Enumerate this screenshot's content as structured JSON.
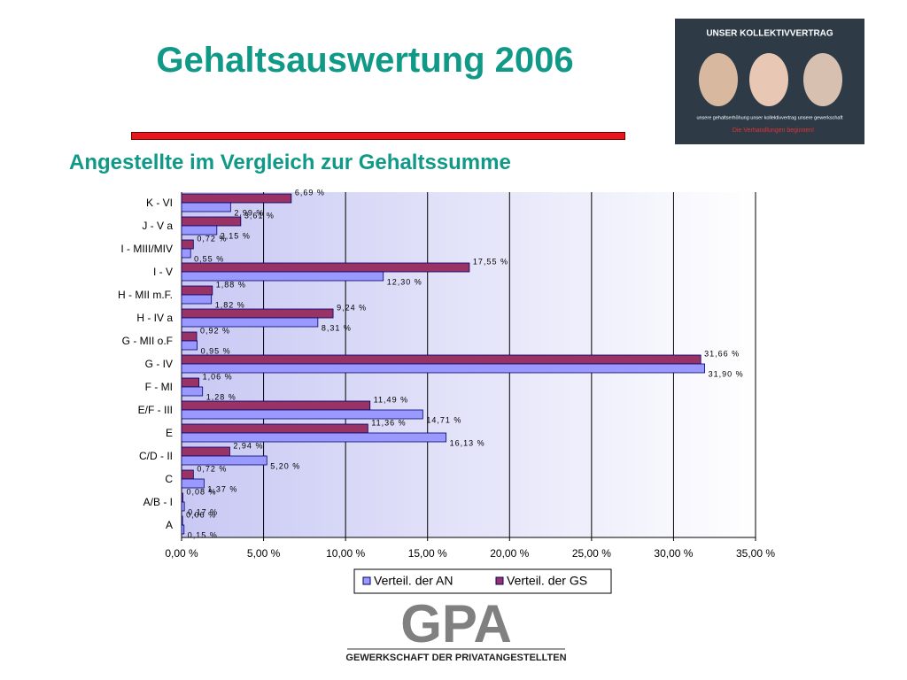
{
  "chart_data": {
    "type": "hbar",
    "title": "Gehaltsauswertung 2006",
    "subtitle": "Angestellte im Vergleich zur Gehaltssumme",
    "categories": [
      "K - VI",
      "J - V a",
      "I - MIII/MIV",
      "I - V",
      "H - MII m.F.",
      "H - IV a",
      "G - MII o.F",
      "G - IV",
      "F - MI",
      "E/F - III",
      "E",
      "C/D - II",
      "C",
      "A/B - I",
      "A"
    ],
    "series": [
      {
        "name": "Verteil. der AN",
        "color": "#9999ff",
        "values": [
          2.99,
          2.15,
          0.55,
          12.3,
          1.82,
          8.31,
          0.95,
          31.9,
          1.28,
          14.71,
          16.13,
          5.2,
          1.37,
          0.17,
          0.15
        ],
        "value_labels": [
          "2,99 %",
          "2,15 %",
          "0,55 %",
          "12,30 %",
          "1,82 %",
          "8,31 %",
          "0,95 %",
          "31,90 %",
          "1,28 %",
          "14,71 %",
          "16,13 %",
          "5,20 %",
          "1,37 %",
          "0,17 %",
          "0,15 %"
        ]
      },
      {
        "name": "Verteil. der GS",
        "color": "#993366",
        "values": [
          6.69,
          3.61,
          0.72,
          17.55,
          1.88,
          9.24,
          0.92,
          31.66,
          1.06,
          11.49,
          11.36,
          2.94,
          0.72,
          0.08,
          0.06
        ],
        "value_labels": [
          "6,69 %",
          "3,61 %",
          "0,72 %",
          "17,55 %",
          "1,88 %",
          "9,24 %",
          "0,92 %",
          "31,66 %",
          "1,06 %",
          "11,49 %",
          "11,36 %",
          "2,94 %",
          "0,72 %",
          "0,08 %",
          "0,06 %"
        ]
      }
    ],
    "xlim": [
      0,
      35
    ],
    "xticks": [
      {
        "value": 0,
        "label": "0,00 %"
      },
      {
        "value": 5,
        "label": "5,00 %"
      },
      {
        "value": 10,
        "label": "10,00 %"
      },
      {
        "value": 15,
        "label": "15,00 %"
      },
      {
        "value": 20,
        "label": "20,00 %"
      },
      {
        "value": 25,
        "label": "25,00 %"
      },
      {
        "value": 30,
        "label": "30,00 %"
      },
      {
        "value": 35,
        "label": "35,00 %"
      }
    ],
    "grid": true,
    "legend": "bottom"
  },
  "banner": {
    "heading": "UNSER KOLLEKTIVVERTRAG",
    "tagline": "unsere gehaltserhöhung unser kollektivvertrag unsere gewerkschaft",
    "slogan": "Die Verhandlungen beginnen!"
  },
  "footer": {
    "logo": "GPA",
    "name": "GEWERKSCHAFT DER PRIVATANGESTELLTEN"
  }
}
